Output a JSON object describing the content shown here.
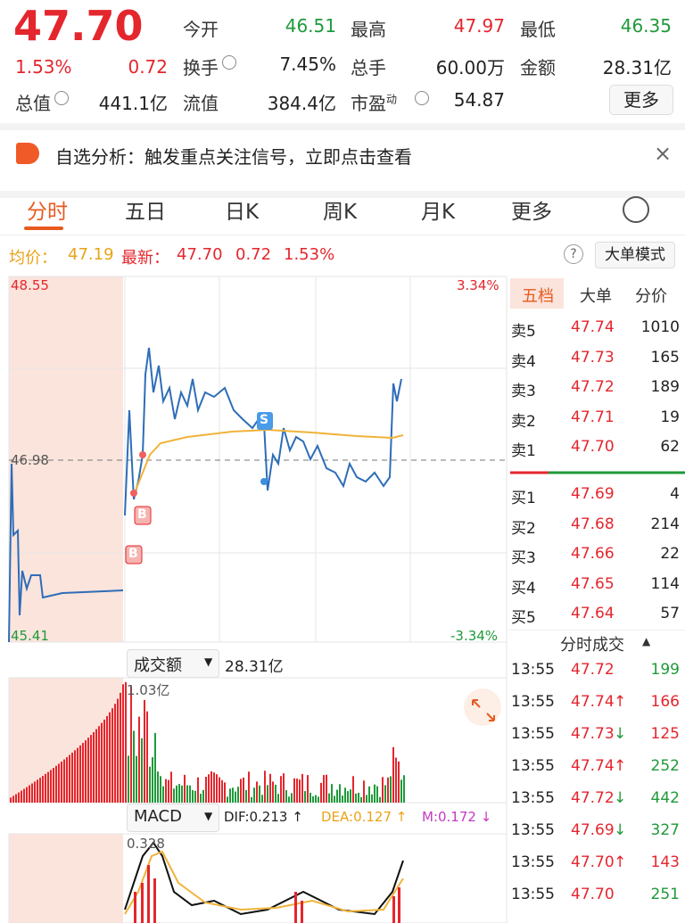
{
  "header": {
    "price": "47.70",
    "change_pct": "1.53%",
    "change": "0.72",
    "stats": [
      {
        "label": "今开",
        "value": "46.51"
      },
      {
        "label": "最高",
        "value": "47.97"
      },
      {
        "label": "最低",
        "value": "46.35"
      },
      {
        "label": "换手",
        "value": "7.45%"
      },
      {
        "label": "总手",
        "value": "60.00万"
      },
      {
        "label": "金额",
        "value": "28.31亿"
      },
      {
        "label": "总值",
        "value": "441.1亿"
      },
      {
        "label": "流值",
        "value": "384.4亿"
      },
      {
        "label": "市盈",
        "sup": "动",
        "value": "54.87"
      }
    ],
    "more": "更多"
  },
  "banner": "自选分析：触发重点关注信号，立即点击查看",
  "tabs": [
    "分时",
    "五日",
    "日K",
    "周K",
    "月K",
    "更多"
  ],
  "info": {
    "avg_label": "均价：",
    "avg": "47.19",
    "latest_label": "最新：",
    "latest": "47.70",
    "change": "0.72",
    "change_pct": "1.53%",
    "mode": "大单模式"
  },
  "chart": {
    "high": "48.55",
    "mid": "46.98",
    "low": "45.41",
    "high_pct": "3.34%",
    "low_pct": "-3.34%",
    "markers": [
      "S",
      "B",
      "B"
    ]
  },
  "volume": {
    "selector": "成交额",
    "total": "28.31亿",
    "max": "1.03亿"
  },
  "macd": {
    "selector": "MACD",
    "dif": "DIF:0.213 ↑",
    "dea": "DEA:0.127 ↑",
    "m": "M:0.172 ↓",
    "max": "0.328"
  },
  "book": {
    "tabs": [
      "五档",
      "大单",
      "分价"
    ],
    "asks": [
      [
        "卖5",
        "47.74",
        "1010"
      ],
      [
        "卖4",
        "47.73",
        "165"
      ],
      [
        "卖3",
        "47.72",
        "189"
      ],
      [
        "卖2",
        "47.71",
        "19"
      ],
      [
        "卖1",
        "47.70",
        "62"
      ]
    ],
    "bids": [
      [
        "买1",
        "47.69",
        "4"
      ],
      [
        "买2",
        "47.68",
        "214"
      ],
      [
        "买3",
        "47.66",
        "22"
      ],
      [
        "买4",
        "47.65",
        "114"
      ],
      [
        "买5",
        "47.64",
        "57"
      ]
    ]
  },
  "trades": {
    "title": "分时成交",
    "rows": [
      [
        "13:55",
        "47.72",
        "",
        "199"
      ],
      [
        "13:55",
        "47.74",
        "↑",
        "166"
      ],
      [
        "13:55",
        "47.73",
        "↓",
        "125"
      ],
      [
        "13:55",
        "47.74",
        "↑",
        "252"
      ],
      [
        "13:55",
        "47.72",
        "↓",
        "442"
      ],
      [
        "13:55",
        "47.69",
        "↓",
        "327"
      ],
      [
        "13:55",
        "47.70",
        "↑",
        "143"
      ],
      [
        "13:55",
        "47.70",
        "",
        "251"
      ]
    ]
  }
}
